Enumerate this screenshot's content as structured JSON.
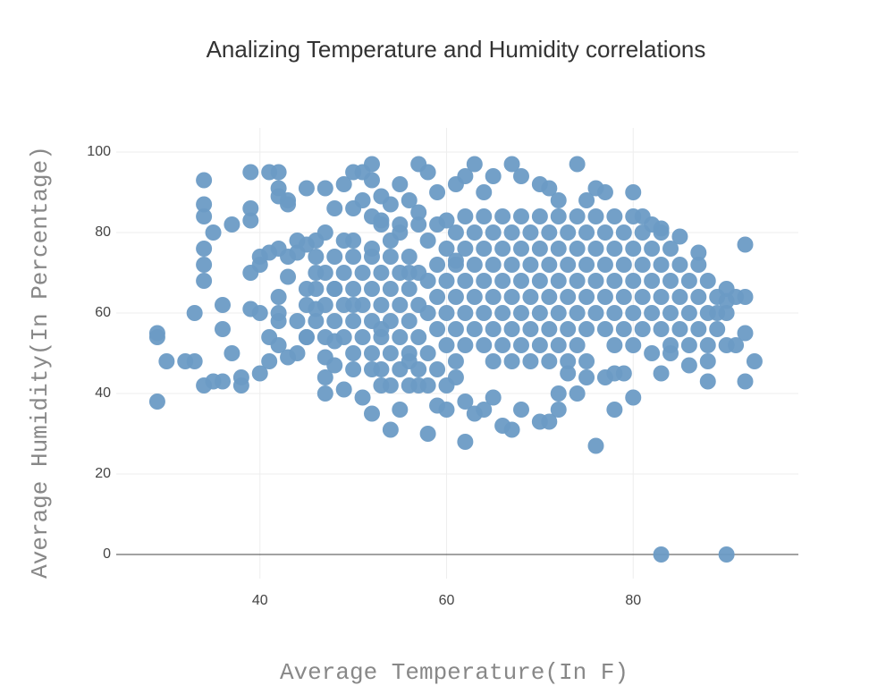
{
  "chart_data": {
    "type": "scatter",
    "title": "Analizing Temperature and Humidity correlations",
    "x_label": "Average Temperature(In F)",
    "y_label": "Average Humidity(In Percentage)",
    "color": "#6b9bc5",
    "grid": true,
    "xlim": [
      24.6,
      97.7
    ],
    "ylim": [
      -6,
      106
    ],
    "xticks": [
      40,
      60,
      80
    ],
    "yticks": [
      0,
      20,
      40,
      60,
      80,
      100
    ],
    "x": [
      29,
      29,
      29,
      30,
      32,
      33,
      33,
      34,
      34,
      34,
      34,
      34,
      34,
      34,
      35,
      35,
      36,
      36,
      36,
      37,
      37,
      38,
      38,
      39,
      39,
      39,
      39,
      39,
      40,
      40,
      40,
      40,
      41,
      41,
      41,
      41,
      42,
      42,
      42,
      42,
      42,
      42,
      42,
      42,
      43,
      43,
      43,
      43,
      43,
      44,
      44,
      45,
      45,
      45,
      45,
      46,
      46,
      46,
      47,
      47,
      47,
      47,
      47,
      48,
      48,
      48,
      48,
      49,
      49,
      49,
      50,
      50,
      50,
      50,
      51,
      51,
      51,
      52,
      52,
      52,
      52,
      52,
      52,
      53,
      53,
      53,
      53,
      54,
      54,
      55,
      55,
      55,
      56,
      56,
      56,
      57,
      57,
      57,
      58,
      58,
      59,
      59,
      60,
      60,
      61,
      61,
      61,
      62,
      62,
      62,
      63,
      63,
      64,
      64,
      65,
      65,
      66,
      67,
      67,
      68,
      68,
      70,
      70,
      71,
      71,
      72,
      72,
      72,
      73,
      74,
      74,
      75,
      75,
      76,
      76,
      77,
      77,
      78,
      78,
      79,
      80,
      80,
      81,
      82,
      82,
      83,
      83,
      83,
      84,
      85,
      86,
      87,
      88,
      88,
      90,
      90,
      92,
      92,
      92,
      92,
      93,
      91,
      89,
      90,
      62,
      64,
      66,
      68,
      70,
      72,
      74,
      76,
      78,
      80,
      61,
      63,
      65,
      67,
      69,
      71,
      73,
      75,
      77,
      79,
      81,
      83,
      60,
      62,
      64,
      66,
      68,
      70,
      72,
      74,
      76,
      78,
      80,
      82,
      84,
      59,
      61,
      63,
      65,
      67,
      69,
      71,
      73,
      75,
      77,
      79,
      81,
      83,
      85,
      87,
      58,
      60,
      62,
      64,
      66,
      68,
      70,
      72,
      74,
      76,
      78,
      80,
      82,
      84,
      86,
      88,
      59,
      61,
      63,
      65,
      67,
      69,
      71,
      73,
      75,
      77,
      79,
      81,
      83,
      85,
      87,
      89,
      91,
      58,
      60,
      62,
      64,
      66,
      68,
      70,
      72,
      74,
      76,
      78,
      80,
      82,
      84,
      86,
      88,
      90,
      59,
      61,
      63,
      65,
      67,
      69,
      71,
      73,
      75,
      77,
      79,
      81,
      83,
      85,
      87,
      89,
      60,
      62,
      64,
      66,
      68,
      70,
      72,
      74,
      78,
      80,
      84,
      86,
      88,
      90,
      61,
      65,
      67,
      69,
      71,
      73,
      75,
      46,
      48,
      50,
      52,
      54,
      56,
      47,
      49,
      51,
      53,
      55,
      57,
      46,
      48,
      50,
      52,
      54,
      56,
      45,
      47,
      49,
      51,
      53,
      55,
      57,
      44,
      46,
      48,
      50,
      52,
      54,
      56,
      45,
      47,
      49,
      51,
      53,
      55,
      57,
      50,
      52,
      54,
      56,
      58,
      53,
      55,
      57,
      59,
      54,
      56,
      58,
      60,
      53,
      55,
      57,
      59,
      44,
      50,
      54,
      58
    ],
    "values": [
      55,
      54,
      38,
      48,
      48,
      48,
      60,
      93,
      87,
      84,
      76,
      72,
      68,
      42,
      80,
      43,
      62,
      56,
      43,
      82,
      50,
      44,
      42,
      95,
      86,
      83,
      70,
      61,
      74,
      72,
      60,
      45,
      95,
      75,
      54,
      48,
      95,
      91,
      89,
      76,
      64,
      60,
      58,
      52,
      88,
      87,
      74,
      69,
      49,
      75,
      50,
      91,
      77,
      66,
      54,
      78,
      70,
      61,
      91,
      80,
      49,
      44,
      40,
      86,
      66,
      53,
      47,
      92,
      78,
      41,
      95,
      86,
      62,
      46,
      95,
      88,
      39,
      97,
      93,
      84,
      76,
      46,
      35,
      89,
      83,
      56,
      42,
      87,
      31,
      92,
      80,
      36,
      88,
      70,
      48,
      97,
      85,
      42,
      95,
      30,
      90,
      37,
      83,
      36,
      92,
      73,
      44,
      94,
      28,
      38,
      97,
      35,
      90,
      36,
      94,
      39,
      32,
      97,
      31,
      94,
      36,
      92,
      33,
      91,
      33,
      88,
      40,
      36,
      45,
      97,
      40,
      88,
      44,
      91,
      27,
      90,
      44,
      36,
      45,
      45,
      90,
      39,
      84,
      82,
      50,
      81,
      45,
      0,
      50,
      79,
      47,
      75,
      48,
      43,
      0,
      66,
      77,
      64,
      43,
      55,
      48,
      52,
      60,
      63,
      84,
      84,
      84,
      84,
      84,
      84,
      84,
      84,
      84,
      84,
      80,
      80,
      80,
      80,
      80,
      80,
      80,
      80,
      80,
      80,
      80,
      80,
      76,
      76,
      76,
      76,
      76,
      76,
      76,
      76,
      76,
      76,
      76,
      76,
      76,
      72,
      72,
      72,
      72,
      72,
      72,
      72,
      72,
      72,
      72,
      72,
      72,
      72,
      72,
      72,
      68,
      68,
      68,
      68,
      68,
      68,
      68,
      68,
      68,
      68,
      68,
      68,
      68,
      68,
      68,
      68,
      64,
      64,
      64,
      64,
      64,
      64,
      64,
      64,
      64,
      64,
      64,
      64,
      64,
      64,
      64,
      64,
      64,
      60,
      60,
      60,
      60,
      60,
      60,
      60,
      60,
      60,
      60,
      60,
      60,
      60,
      60,
      60,
      60,
      60,
      56,
      56,
      56,
      56,
      56,
      56,
      56,
      56,
      56,
      56,
      56,
      56,
      56,
      56,
      56,
      56,
      52,
      52,
      52,
      52,
      52,
      52,
      52,
      52,
      52,
      52,
      52,
      52,
      52,
      52,
      48,
      48,
      48,
      48,
      48,
      48,
      48,
      74,
      74,
      74,
      74,
      74,
      74,
      70,
      70,
      70,
      70,
      70,
      70,
      66,
      66,
      66,
      66,
      66,
      66,
      62,
      62,
      62,
      62,
      62,
      62,
      62,
      58,
      58,
      58,
      58,
      58,
      58,
      58,
      54,
      54,
      54,
      54,
      54,
      54,
      54,
      50,
      50,
      50,
      50,
      50,
      46,
      46,
      46,
      46,
      42,
      42,
      42,
      42,
      82,
      82,
      82,
      82,
      78,
      78,
      78,
      78
    ]
  }
}
